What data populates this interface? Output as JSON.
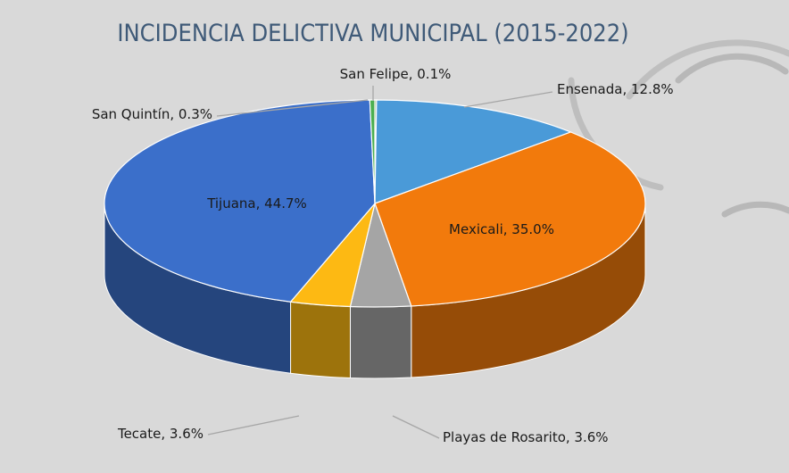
{
  "chart_data": {
    "type": "pie",
    "title": "INCIDENCIA DELICTIVA MUNICIPAL (2015-2022)",
    "slices": [
      {
        "label": "San Felipe",
        "value": 0.1,
        "color": "#5a8a3a"
      },
      {
        "label": "Ensenada",
        "value": 12.8,
        "color": "#4a9ad8"
      },
      {
        "label": "Mexicali",
        "value": 35.0,
        "color": "#f27a0c"
      },
      {
        "label": "Playas de Rosarito",
        "value": 3.6,
        "color": "#a5a5a5"
      },
      {
        "label": "Tecate",
        "value": 3.6,
        "color": "#fdb913"
      },
      {
        "label": "Tijuana",
        "value": 44.7,
        "color": "#3b6fca"
      },
      {
        "label": "San Quintín",
        "value": 0.3,
        "color": "#4caf50"
      }
    ],
    "data_labels": [
      "San Felipe, 0.1%",
      "Ensenada, 12.8%",
      "Mexicali, 35.0%",
      "Playas de Rosarito, 3.6%",
      "Tecate, 3.6%",
      "Tijuana, 44.7%",
      "San Quintín, 0.3%"
    ],
    "colors": {
      "background": "#d9d9d9",
      "title": "#3f5a78"
    }
  }
}
